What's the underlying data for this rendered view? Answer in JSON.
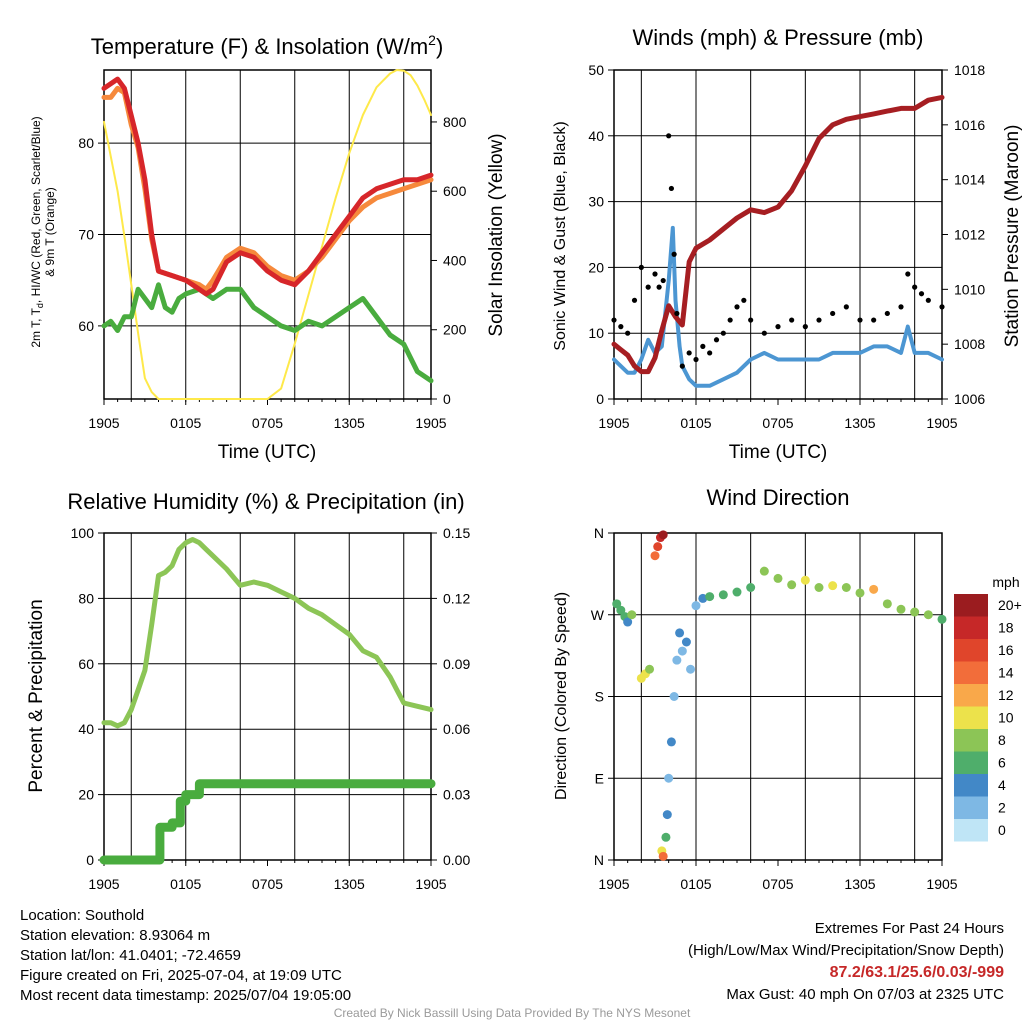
{
  "charts": {
    "temperature": {
      "title": "Temperature (F) & Insolation (W/m",
      "title_sup": "2",
      "title_close": ")",
      "ylabel_left_1": "2m T, T",
      "ylabel_left_sub": "d",
      "ylabel_left_2": ", HI/WC (Red, Green, Scarlet/Blue)",
      "ylabel_left_3": "& 9m T (Orange)",
      "ylabel_right": "Solar Insolation (Yellow)",
      "xlabel": "Time (UTC)"
    },
    "winds": {
      "title": "Winds (mph) & Pressure (mb)",
      "ylabel_left": "Sonic Wind & Gust (Blue, Black)",
      "ylabel_right": "Station Pressure (Maroon)",
      "xlabel": "Time (UTC)"
    },
    "humidity": {
      "title": "Relative Humidity (%) & Precipitation (in)",
      "ylabel_left": "Percent & Precipitation"
    },
    "direction": {
      "title": "Wind Direction",
      "ylabel_left": "Direction (Colored By Speed)",
      "legend_title": "mph"
    }
  },
  "chart_data": [
    {
      "type": "line",
      "title": "Temperature (F) & Insolation (W/m2)",
      "xlabel": "Time (UTC)",
      "ylabel": "2m T, Td, HI/WC (Red, Green, Scarlet/Blue) & 9m T (Orange)",
      "y2label": "Solar Insolation (Yellow)",
      "x_ticks": [
        "1905",
        "0105",
        "0705",
        "1305",
        "1905"
      ],
      "x_unit": "hours since 1905 UTC",
      "xlim": [
        0,
        24
      ],
      "ylim": [
        52,
        88
      ],
      "y_ticks": [
        60,
        70,
        80
      ],
      "y2lim": [
        0,
        950
      ],
      "y2_ticks": [
        0,
        200,
        400,
        600,
        800
      ],
      "grid": true,
      "series": [
        {
          "name": "2m T",
          "color": "#d7262a",
          "axis": "left",
          "x": [
            0,
            0.5,
            1,
            1.5,
            2,
            2.5,
            3,
            3.5,
            4,
            5,
            6,
            7,
            7.5,
            8,
            9,
            10,
            11,
            12,
            13,
            14,
            15,
            16,
            17,
            18,
            19,
            20,
            21,
            22,
            23,
            24
          ],
          "y": [
            86,
            86.5,
            87,
            86,
            83,
            80,
            76,
            70,
            66,
            65.5,
            65,
            64,
            63.5,
            64,
            67,
            68,
            67.5,
            66,
            65,
            64.5,
            66,
            68,
            70,
            72,
            74,
            75,
            75.5,
            76,
            76,
            76.5
          ]
        },
        {
          "name": "9m T",
          "color": "#f6893c",
          "axis": "left",
          "x": [
            0,
            0.5,
            1,
            1.5,
            2,
            2.5,
            3,
            3.5,
            4,
            5,
            6,
            7,
            7.5,
            8,
            9,
            10,
            11,
            12,
            13,
            14,
            15,
            16,
            17,
            18,
            19,
            20,
            21,
            22,
            23,
            24
          ],
          "y": [
            85,
            85,
            86,
            85.5,
            82,
            79.5,
            75,
            69.5,
            66,
            65.5,
            65,
            64.5,
            64,
            65,
            67.5,
            68.5,
            68,
            66.5,
            65.5,
            65,
            66,
            67.5,
            69.5,
            71.5,
            73,
            74,
            74.5,
            75,
            75.5,
            76
          ]
        },
        {
          "name": "Td",
          "color": "#49ac3e",
          "axis": "left",
          "x": [
            0,
            0.5,
            1,
            1.5,
            2,
            2.5,
            3,
            3.5,
            4,
            4.5,
            5,
            5.5,
            6,
            7,
            8,
            9,
            10,
            11,
            12,
            13,
            14,
            15,
            16,
            17,
            18,
            19,
            20,
            21,
            22,
            23,
            24
          ],
          "y": [
            60,
            60.5,
            59.5,
            61,
            61,
            64,
            63,
            62,
            64.5,
            62,
            61.5,
            63,
            63.5,
            64,
            63,
            64,
            64,
            62,
            61,
            60,
            59.5,
            60.5,
            60,
            61,
            62,
            63,
            61,
            59,
            58,
            55,
            54
          ]
        },
        {
          "name": "Solar Insolation",
          "color": "#fee94a",
          "axis": "right",
          "x": [
            0,
            0.5,
            1,
            1.5,
            2,
            2.5,
            3,
            3.5,
            4,
            5,
            6,
            8,
            10,
            12,
            13,
            14,
            15,
            16,
            17,
            18,
            19,
            20,
            21,
            21.5,
            22,
            22.5,
            23,
            23.5,
            24
          ],
          "y": [
            800,
            700,
            600,
            470,
            330,
            190,
            60,
            20,
            0,
            0,
            0,
            0,
            0,
            0,
            30,
            160,
            300,
            440,
            580,
            710,
            820,
            900,
            940,
            950,
            948,
            935,
            905,
            865,
            820
          ]
        }
      ]
    },
    {
      "type": "line",
      "title": "Winds (mph) & Pressure (mb)",
      "xlabel": "Time (UTC)",
      "ylabel": "Sonic Wind & Gust (Blue, Black)",
      "y2label": "Station Pressure (Maroon)",
      "x_ticks": [
        "1905",
        "0105",
        "0705",
        "1305",
        "1905"
      ],
      "x_unit": "hours since 1905 UTC",
      "xlim": [
        0,
        24
      ],
      "ylim": [
        0,
        50
      ],
      "y_ticks": [
        0,
        10,
        20,
        30,
        40,
        50
      ],
      "y2lim": [
        1006,
        1018
      ],
      "y2_ticks": [
        1006,
        1008,
        1010,
        1012,
        1014,
        1016,
        1018
      ],
      "grid": true,
      "series": [
        {
          "name": "Sonic Wind",
          "color": "#4c96d2",
          "axis": "left",
          "x": [
            0,
            0.5,
            1,
            1.5,
            2,
            2.5,
            3,
            3.5,
            4,
            4.3,
            4.5,
            4.8,
            5,
            5.5,
            6,
            7,
            8,
            9,
            10,
            11,
            12,
            13,
            14,
            15,
            16,
            17,
            18,
            19,
            20,
            21,
            21.5,
            22,
            23,
            24
          ],
          "y": [
            6,
            5,
            4,
            4,
            6,
            9,
            7,
            8,
            18,
            26,
            15,
            8,
            5,
            3,
            2,
            2,
            3,
            4,
            6,
            7,
            6,
            6,
            6,
            6,
            7,
            7,
            7,
            8,
            8,
            7,
            11,
            7,
            7,
            6
          ]
        },
        {
          "name": "Gust",
          "color": "#000000",
          "axis": "left",
          "style": "points",
          "x": [
            0,
            0.5,
            1,
            1.5,
            2,
            2.5,
            3,
            3.3,
            3.6,
            4,
            4.2,
            4.4,
            4.6,
            5,
            5.5,
            6,
            6.5,
            7,
            7.5,
            8,
            8.5,
            9,
            9.5,
            10,
            11,
            12,
            13,
            14,
            15,
            16,
            17,
            18,
            19,
            20,
            21,
            21.5,
            22,
            22.5,
            23,
            24
          ],
          "y": [
            12,
            11,
            10,
            15,
            20,
            17,
            19,
            17,
            18,
            40,
            32,
            22,
            13,
            5,
            7,
            6,
            8,
            7,
            9,
            10,
            12,
            14,
            15,
            12,
            10,
            11,
            12,
            11,
            12,
            13,
            14,
            12,
            12,
            13,
            14,
            19,
            17,
            16,
            15,
            14
          ]
        },
        {
          "name": "Station Pressure",
          "color": "#a61e22",
          "axis": "right",
          "x": [
            0,
            0.5,
            1,
            1.5,
            2,
            2.5,
            3,
            3.5,
            4,
            4.5,
            5,
            5.5,
            6,
            7,
            8,
            9,
            10,
            11,
            12,
            13,
            14,
            15,
            16,
            17,
            18,
            19,
            20,
            21,
            22,
            23,
            24
          ],
          "y": [
            1008,
            1007.8,
            1007.6,
            1007.2,
            1007,
            1007,
            1007.5,
            1008.5,
            1009.4,
            1009,
            1008.7,
            1011,
            1011.5,
            1011.8,
            1012.2,
            1012.6,
            1012.9,
            1012.8,
            1013,
            1013.6,
            1014.5,
            1015.5,
            1016,
            1016.2,
            1016.3,
            1016.4,
            1016.5,
            1016.6,
            1016.6,
            1016.9,
            1017
          ]
        }
      ]
    },
    {
      "type": "line",
      "title": "Relative Humidity (%) & Precipitation (in)",
      "xlabel": "",
      "ylabel": "Percent & Precipitation",
      "x_ticks": [
        "1905",
        "0105",
        "0705",
        "1305",
        "1905"
      ],
      "x_unit": "hours since 1905 UTC",
      "xlim": [
        0,
        24
      ],
      "ylim": [
        0,
        100
      ],
      "y_ticks": [
        0,
        20,
        40,
        60,
        80,
        100
      ],
      "y2lim": [
        0,
        0.15
      ],
      "y2_ticks": [
        "0.00",
        "0.03",
        "0.06",
        "0.09",
        "0.12",
        "0.15"
      ],
      "grid": true,
      "series": [
        {
          "name": "Relative Humidity",
          "color": "#8cc556",
          "axis": "left",
          "x": [
            0,
            0.5,
            1,
            1.5,
            2,
            2.5,
            3,
            3.5,
            4,
            4.5,
            5,
            5.5,
            6,
            6.5,
            7,
            7.5,
            8,
            9,
            10,
            11,
            12,
            13,
            14,
            15,
            16,
            17,
            18,
            19,
            20,
            21,
            21.5,
            22,
            23,
            24
          ],
          "y": [
            42,
            42,
            41,
            42,
            46,
            52,
            58,
            72,
            87,
            88,
            90,
            95,
            97,
            98,
            97,
            95,
            93,
            89,
            84,
            85,
            84,
            82,
            80,
            77,
            75,
            72,
            69,
            64,
            62,
            56,
            52,
            48,
            47,
            46
          ]
        },
        {
          "name": "Precipitation",
          "color": "#49ac3e",
          "axis": "right",
          "x": [
            0,
            0.5,
            1,
            2,
            3,
            4,
            4.1,
            4.5,
            5,
            5.5,
            5.6,
            6,
            7,
            10,
            14,
            18,
            22,
            24
          ],
          "y": [
            0,
            0,
            0,
            0,
            0,
            0,
            0.015,
            0.015,
            0.017,
            0.017,
            0.027,
            0.03,
            0.035,
            0.035,
            0.035,
            0.035,
            0.035,
            0.035
          ]
        }
      ]
    },
    {
      "type": "scatter",
      "title": "Wind Direction",
      "xlabel": "",
      "ylabel": "Direction (Colored By Speed)",
      "x_ticks": [
        "1905",
        "0105",
        "0705",
        "1305",
        "1905"
      ],
      "x_unit": "hours since 1905 UTC",
      "xlim": [
        0,
        24
      ],
      "y_unit": "degrees",
      "ylim": [
        0,
        360
      ],
      "y_ticks": [
        "N",
        "E",
        "S",
        "W",
        "N"
      ],
      "grid": true,
      "legend": {
        "title": "mph",
        "placement": "right",
        "labels": [
          "20+",
          "18",
          "16",
          "14",
          "12",
          "10",
          "8",
          "6",
          "4",
          "2",
          "0"
        ],
        "colors": [
          "#9b1c1f",
          "#c62828",
          "#e0452b",
          "#f26d3a",
          "#f9a84a",
          "#ece24b",
          "#8cc556",
          "#4fae6b",
          "#4288c7",
          "#7eb8e4",
          "#bfe5f6"
        ]
      },
      "points": [
        {
          "x": 0.2,
          "dir": 282,
          "speed": 5
        },
        {
          "x": 0.5,
          "dir": 275,
          "speed": 5
        },
        {
          "x": 0.8,
          "dir": 268,
          "speed": 6
        },
        {
          "x": 1.0,
          "dir": 262,
          "speed": 4
        },
        {
          "x": 1.3,
          "dir": 270,
          "speed": 7
        },
        {
          "x": 2.0,
          "dir": 200,
          "speed": 10
        },
        {
          "x": 2.3,
          "dir": 205,
          "speed": 9
        },
        {
          "x": 2.6,
          "dir": 210,
          "speed": 7
        },
        {
          "x": 3.0,
          "dir": 335,
          "speed": 14
        },
        {
          "x": 3.2,
          "dir": 345,
          "speed": 16
        },
        {
          "x": 3.4,
          "dir": 355,
          "speed": 18
        },
        {
          "x": 3.6,
          "dir": 358,
          "speed": 20
        },
        {
          "x": 3.5,
          "dir": 10,
          "speed": 10
        },
        {
          "x": 3.6,
          "dir": 4,
          "speed": 14
        },
        {
          "x": 3.8,
          "dir": 25,
          "speed": 6
        },
        {
          "x": 3.9,
          "dir": 50,
          "speed": 3
        },
        {
          "x": 4.0,
          "dir": 90,
          "speed": 2
        },
        {
          "x": 4.2,
          "dir": 130,
          "speed": 3
        },
        {
          "x": 4.4,
          "dir": 180,
          "speed": 2
        },
        {
          "x": 4.6,
          "dir": 220,
          "speed": 2
        },
        {
          "x": 4.8,
          "dir": 250,
          "speed": 3
        },
        {
          "x": 5.0,
          "dir": 230,
          "speed": 2
        },
        {
          "x": 5.3,
          "dir": 240,
          "speed": 3
        },
        {
          "x": 5.6,
          "dir": 210,
          "speed": 2
        },
        {
          "x": 6.0,
          "dir": 280,
          "speed": 1
        },
        {
          "x": 6.5,
          "dir": 288,
          "speed": 3
        },
        {
          "x": 7.0,
          "dir": 290,
          "speed": 5
        },
        {
          "x": 8.0,
          "dir": 292,
          "speed": 5
        },
        {
          "x": 9.0,
          "dir": 295,
          "speed": 6
        },
        {
          "x": 10.0,
          "dir": 300,
          "speed": 6
        },
        {
          "x": 11.0,
          "dir": 318,
          "speed": 7
        },
        {
          "x": 12.0,
          "dir": 310,
          "speed": 7
        },
        {
          "x": 13.0,
          "dir": 303,
          "speed": 8
        },
        {
          "x": 14.0,
          "dir": 308,
          "speed": 9
        },
        {
          "x": 15.0,
          "dir": 300,
          "speed": 7
        },
        {
          "x": 16.0,
          "dir": 302,
          "speed": 9
        },
        {
          "x": 17.0,
          "dir": 300,
          "speed": 8
        },
        {
          "x": 18.0,
          "dir": 294,
          "speed": 8
        },
        {
          "x": 19.0,
          "dir": 298,
          "speed": 12
        },
        {
          "x": 20.0,
          "dir": 282,
          "speed": 7
        },
        {
          "x": 21.0,
          "dir": 276,
          "speed": 8
        },
        {
          "x": 22.0,
          "dir": 273,
          "speed": 7
        },
        {
          "x": 23.0,
          "dir": 270,
          "speed": 7
        },
        {
          "x": 24.0,
          "dir": 265,
          "speed": 6
        }
      ]
    }
  ],
  "footer": {
    "location": "Location: Southold",
    "elevation": "Station elevation: 8.93064 m",
    "latlon": "Station lat/lon: 41.0401; -72.4659",
    "created": "Figure created on Fri, 2025-07-04, at 19:09 UTC",
    "recent": "Most recent data timestamp: 2025/07/04 19:05:00",
    "extremes_title": "Extremes For Past 24 Hours",
    "extremes_legend": "(High/Low/Max Wind/Precipitation/Snow Depth)",
    "extremes_values": "87.2/63.1/25.6/0.03/-999",
    "max_gust": "Max Gust: 40 mph On 07/03 at 2325 UTC",
    "credit": "Created By Nick Bassill Using Data Provided By The NYS Mesonet"
  }
}
